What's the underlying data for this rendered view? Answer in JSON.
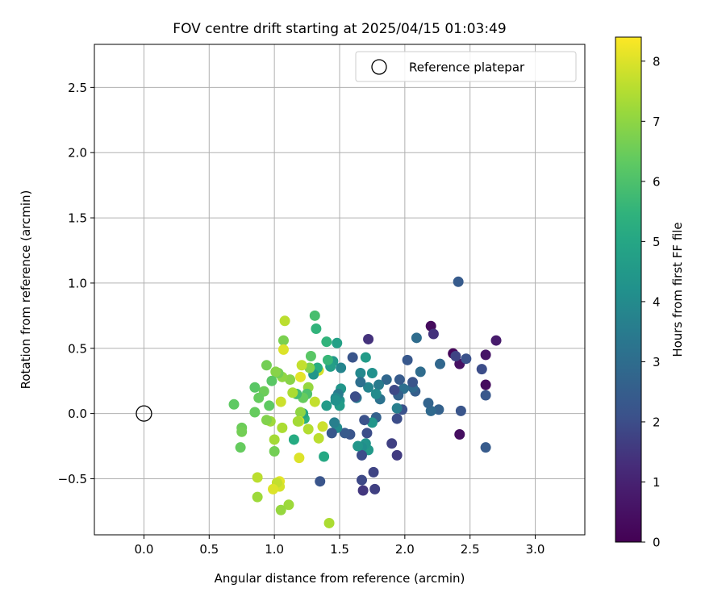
{
  "chart_data": {
    "type": "scatter",
    "title": "FOV centre drift starting at 2025/04/15 01:03:49",
    "xlabel": "Angular distance from reference (arcmin)",
    "ylabel": "Rotation from reference (arcmin)",
    "xlim": [
      -0.38,
      3.38
    ],
    "ylim": [
      -0.93,
      2.83
    ],
    "xticks": [
      0.0,
      0.5,
      1.0,
      1.5,
      2.0,
      2.5,
      3.0
    ],
    "xtick_labels": [
      "0.0",
      "0.5",
      "1.0",
      "1.5",
      "2.0",
      "2.5",
      "3.0"
    ],
    "yticks": [
      -0.5,
      0.0,
      0.5,
      1.0,
      1.5,
      2.0,
      2.5
    ],
    "ytick_labels": [
      "−0.5",
      "0.0",
      "0.5",
      "1.0",
      "1.5",
      "2.0",
      "2.5"
    ],
    "grid": true,
    "legend": {
      "placement": "upper right",
      "label": "Reference platepar"
    },
    "reference_point": {
      "x": 0.0,
      "y": 0.0,
      "marker": "open circle"
    },
    "colorbar": {
      "label": "Hours from first FF file",
      "colormap": "viridis",
      "range": [
        0,
        8.4
      ],
      "ticks": [
        0,
        1,
        2,
        3,
        4,
        5,
        6,
        7,
        8
      ],
      "tick_labels": [
        "0",
        "1",
        "2",
        "3",
        "4",
        "5",
        "6",
        "7",
        "8"
      ]
    },
    "points": [
      {
        "x": 2.2,
        "y": 0.67,
        "c": 0.3
      },
      {
        "x": 2.37,
        "y": 0.46,
        "c": 0.2
      },
      {
        "x": 2.42,
        "y": 0.38,
        "c": 0.5
      },
      {
        "x": 2.42,
        "y": -0.16,
        "c": 0.4
      },
      {
        "x": 2.62,
        "y": 0.45,
        "c": 0.6
      },
      {
        "x": 2.62,
        "y": 0.22,
        "c": 0.3
      },
      {
        "x": 2.7,
        "y": 0.56,
        "c": 0.8
      },
      {
        "x": 2.22,
        "y": 0.61,
        "c": 1.4
      },
      {
        "x": 2.39,
        "y": 0.44,
        "c": 1.8
      },
      {
        "x": 2.47,
        "y": 0.42,
        "c": 2.1
      },
      {
        "x": 2.59,
        "y": 0.34,
        "c": 2.0
      },
      {
        "x": 2.62,
        "y": 0.14,
        "c": 2.3
      },
      {
        "x": 2.62,
        "y": -0.26,
        "c": 2.4
      },
      {
        "x": 2.43,
        "y": 0.02,
        "c": 2.2
      },
      {
        "x": 2.41,
        "y": 1.01,
        "c": 2.4
      },
      {
        "x": 2.27,
        "y": 0.38,
        "c": 2.8
      },
      {
        "x": 2.26,
        "y": 0.03,
        "c": 2.6
      },
      {
        "x": 2.2,
        "y": 0.02,
        "c": 2.9
      },
      {
        "x": 2.18,
        "y": 0.08,
        "c": 2.7
      },
      {
        "x": 2.12,
        "y": 0.32,
        "c": 3.0
      },
      {
        "x": 2.09,
        "y": 0.58,
        "c": 3.0
      },
      {
        "x": 2.08,
        "y": 0.17,
        "c": 2.5
      },
      {
        "x": 2.06,
        "y": 0.2,
        "c": 2.9
      },
      {
        "x": 2.06,
        "y": 0.24,
        "c": 2.2
      },
      {
        "x": 2.02,
        "y": 0.41,
        "c": 2.3
      },
      {
        "x": 1.99,
        "y": 0.19,
        "c": 3.1
      },
      {
        "x": 1.98,
        "y": 0.03,
        "c": 2.1
      },
      {
        "x": 1.96,
        "y": 0.26,
        "c": 2.4
      },
      {
        "x": 1.95,
        "y": 0.14,
        "c": 2.6
      },
      {
        "x": 1.94,
        "y": 0.04,
        "c": 3.6
      },
      {
        "x": 1.94,
        "y": -0.04,
        "c": 2.0
      },
      {
        "x": 1.94,
        "y": -0.32,
        "c": 1.6
      },
      {
        "x": 1.92,
        "y": 0.18,
        "c": 1.9
      },
      {
        "x": 1.9,
        "y": -0.23,
        "c": 1.7
      },
      {
        "x": 1.86,
        "y": 0.26,
        "c": 2.8
      },
      {
        "x": 1.81,
        "y": 0.11,
        "c": 3.2
      },
      {
        "x": 1.8,
        "y": 0.22,
        "c": 3.5
      },
      {
        "x": 1.78,
        "y": 0.15,
        "c": 4.0
      },
      {
        "x": 1.78,
        "y": -0.03,
        "c": 2.6
      },
      {
        "x": 1.77,
        "y": -0.58,
        "c": 1.7
      },
      {
        "x": 1.76,
        "y": -0.45,
        "c": 1.8
      },
      {
        "x": 1.75,
        "y": 0.31,
        "c": 4.2
      },
      {
        "x": 1.75,
        "y": -0.07,
        "c": 4.4
      },
      {
        "x": 1.72,
        "y": 0.57,
        "c": 1.4
      },
      {
        "x": 1.72,
        "y": 0.2,
        "c": 3.8
      },
      {
        "x": 1.72,
        "y": -0.28,
        "c": 4.5
      },
      {
        "x": 1.71,
        "y": -0.15,
        "c": 2.0
      },
      {
        "x": 1.7,
        "y": 0.43,
        "c": 4.6
      },
      {
        "x": 1.7,
        "y": -0.23,
        "c": 4.3
      },
      {
        "x": 1.69,
        "y": -0.05,
        "c": 2.1
      },
      {
        "x": 1.68,
        "y": -0.59,
        "c": 1.5
      },
      {
        "x": 1.67,
        "y": -0.26,
        "c": 4.1
      },
      {
        "x": 1.67,
        "y": -0.51,
        "c": 1.9
      },
      {
        "x": 1.67,
        "y": -0.32,
        "c": 2.0
      },
      {
        "x": 1.66,
        "y": 0.31,
        "c": 3.9
      },
      {
        "x": 1.66,
        "y": 0.24,
        "c": 3.1
      },
      {
        "x": 1.64,
        "y": -0.25,
        "c": 4.4
      },
      {
        "x": 1.63,
        "y": 0.12,
        "c": 3.4
      },
      {
        "x": 1.62,
        "y": 0.13,
        "c": 2.0
      },
      {
        "x": 1.6,
        "y": 0.43,
        "c": 2.2
      },
      {
        "x": 1.58,
        "y": -0.16,
        "c": 2.2
      },
      {
        "x": 1.54,
        "y": -0.15,
        "c": 2.4
      },
      {
        "x": 1.51,
        "y": 0.35,
        "c": 3.8
      },
      {
        "x": 1.51,
        "y": 0.19,
        "c": 4.4
      },
      {
        "x": 1.5,
        "y": 0.1,
        "c": 4.3
      },
      {
        "x": 1.5,
        "y": 0.06,
        "c": 4.6
      },
      {
        "x": 1.49,
        "y": 0.15,
        "c": 3.5
      },
      {
        "x": 1.48,
        "y": 0.54,
        "c": 4.8
      },
      {
        "x": 1.48,
        "y": -0.11,
        "c": 4.0
      },
      {
        "x": 1.47,
        "y": 0.12,
        "c": 3.9
      },
      {
        "x": 1.47,
        "y": 0.1,
        "c": 4.2
      },
      {
        "x": 1.46,
        "y": -0.07,
        "c": 3.6
      },
      {
        "x": 1.45,
        "y": 0.4,
        "c": 4.5
      },
      {
        "x": 1.44,
        "y": -0.15,
        "c": 2.3
      },
      {
        "x": 1.43,
        "y": 0.36,
        "c": 4.7
      },
      {
        "x": 1.42,
        "y": -0.84,
        "c": 7.4
      },
      {
        "x": 1.41,
        "y": 0.41,
        "c": 5.6
      },
      {
        "x": 1.4,
        "y": 0.55,
        "c": 5.5
      },
      {
        "x": 1.4,
        "y": 0.06,
        "c": 4.6
      },
      {
        "x": 1.38,
        "y": -0.33,
        "c": 5.1
      },
      {
        "x": 1.37,
        "y": -0.1,
        "c": 7.8
      },
      {
        "x": 1.35,
        "y": -0.52,
        "c": 2.2
      },
      {
        "x": 1.34,
        "y": -0.19,
        "c": 7.6
      },
      {
        "x": 1.34,
        "y": 0.33,
        "c": 7.9
      },
      {
        "x": 1.33,
        "y": 0.35,
        "c": 5.3
      },
      {
        "x": 1.32,
        "y": 0.65,
        "c": 5.5
      },
      {
        "x": 1.31,
        "y": 0.75,
        "c": 5.9
      },
      {
        "x": 1.31,
        "y": 0.09,
        "c": 7.7
      },
      {
        "x": 1.3,
        "y": 0.3,
        "c": 4.4
      },
      {
        "x": 1.28,
        "y": 0.44,
        "c": 6.2
      },
      {
        "x": 1.27,
        "y": 0.35,
        "c": 6.8
      },
      {
        "x": 1.26,
        "y": -0.12,
        "c": 7.5
      },
      {
        "x": 1.26,
        "y": 0.2,
        "c": 7.1
      },
      {
        "x": 1.25,
        "y": 0.15,
        "c": 6.0
      },
      {
        "x": 1.23,
        "y": -0.04,
        "c": 5.4
      },
      {
        "x": 1.22,
        "y": 0.12,
        "c": 6.4
      },
      {
        "x": 1.22,
        "y": 0.0,
        "c": 5.0
      },
      {
        "x": 1.21,
        "y": 0.37,
        "c": 7.7
      },
      {
        "x": 1.2,
        "y": 0.28,
        "c": 8.1
      },
      {
        "x": 1.2,
        "y": 0.01,
        "c": 7.0
      },
      {
        "x": 1.19,
        "y": -0.06,
        "c": 7.9
      },
      {
        "x": 1.19,
        "y": -0.34,
        "c": 8.0
      },
      {
        "x": 1.18,
        "y": -0.06,
        "c": 7.3
      },
      {
        "x": 1.17,
        "y": 0.15,
        "c": 5.8
      },
      {
        "x": 1.15,
        "y": -0.2,
        "c": 5.2
      },
      {
        "x": 1.14,
        "y": 0.16,
        "c": 7.4
      },
      {
        "x": 1.12,
        "y": 0.26,
        "c": 6.9
      },
      {
        "x": 1.11,
        "y": -0.7,
        "c": 7.2
      },
      {
        "x": 1.08,
        "y": 0.71,
        "c": 7.6
      },
      {
        "x": 1.07,
        "y": 0.56,
        "c": 6.7
      },
      {
        "x": 1.07,
        "y": 0.49,
        "c": 8.0
      },
      {
        "x": 1.06,
        "y": 0.28,
        "c": 7.0
      },
      {
        "x": 1.06,
        "y": -0.11,
        "c": 7.4
      },
      {
        "x": 1.05,
        "y": -0.74,
        "c": 7.1
      },
      {
        "x": 1.05,
        "y": 0.09,
        "c": 7.8
      },
      {
        "x": 1.04,
        "y": -0.52,
        "c": 8.1
      },
      {
        "x": 1.04,
        "y": -0.56,
        "c": 7.9
      },
      {
        "x": 1.03,
        "y": 0.31,
        "c": 6.6
      },
      {
        "x": 1.02,
        "y": -0.53,
        "c": 7.7
      },
      {
        "x": 1.01,
        "y": 0.32,
        "c": 6.9
      },
      {
        "x": 1.0,
        "y": -0.29,
        "c": 6.6
      },
      {
        "x": 1.0,
        "y": -0.2,
        "c": 7.3
      },
      {
        "x": 0.99,
        "y": -0.58,
        "c": 8.0
      },
      {
        "x": 0.98,
        "y": 0.25,
        "c": 6.2
      },
      {
        "x": 0.97,
        "y": -0.06,
        "c": 7.2
      },
      {
        "x": 0.96,
        "y": 0.06,
        "c": 6.3
      },
      {
        "x": 0.94,
        "y": -0.05,
        "c": 6.8
      },
      {
        "x": 0.94,
        "y": 0.37,
        "c": 6.6
      },
      {
        "x": 0.92,
        "y": 0.17,
        "c": 6.5
      },
      {
        "x": 0.88,
        "y": 0.12,
        "c": 6.4
      },
      {
        "x": 0.87,
        "y": -0.49,
        "c": 7.6
      },
      {
        "x": 0.87,
        "y": -0.64,
        "c": 7.2
      },
      {
        "x": 0.85,
        "y": 0.01,
        "c": 6.4
      },
      {
        "x": 0.85,
        "y": 0.2,
        "c": 6.2
      },
      {
        "x": 0.75,
        "y": -0.11,
        "c": 6.5
      },
      {
        "x": 0.75,
        "y": -0.14,
        "c": 6.6
      },
      {
        "x": 0.74,
        "y": -0.26,
        "c": 6.4
      },
      {
        "x": 0.69,
        "y": 0.07,
        "c": 6.3
      }
    ]
  }
}
